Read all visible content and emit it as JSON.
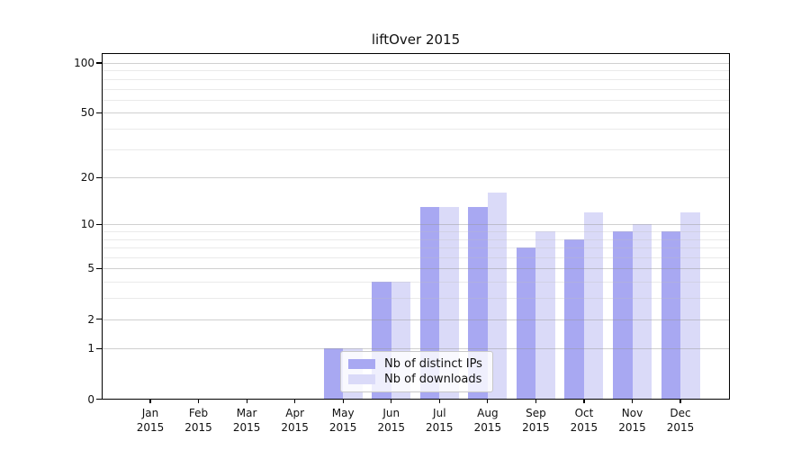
{
  "chart_data": {
    "type": "bar",
    "title": "liftOver 2015",
    "year": "2015",
    "categories": [
      "Jan",
      "Feb",
      "Mar",
      "Apr",
      "May",
      "Jun",
      "Jul",
      "Aug",
      "Sep",
      "Oct",
      "Nov",
      "Dec"
    ],
    "series": [
      {
        "name": "Nb of distinct IPs",
        "color": "#a8a8f2",
        "values": [
          0,
          0,
          0,
          0,
          1,
          4,
          13,
          13,
          7,
          8,
          9,
          9
        ]
      },
      {
        "name": "Nb of downloads",
        "color": "#dadaf8",
        "values": [
          0,
          0,
          0,
          0,
          1,
          4,
          13,
          16,
          9,
          12,
          10,
          12
        ]
      }
    ],
    "y_scale": "log10(value+1)",
    "y_major_ticks": [
      100,
      50,
      20,
      10,
      5,
      2,
      1,
      0
    ],
    "y_minor_ticks": [
      3,
      4,
      6,
      7,
      8,
      9,
      30,
      40,
      60,
      70,
      80,
      90
    ],
    "ylim": [
      0,
      115
    ],
    "grid": "on",
    "legend_position": "lower center"
  }
}
